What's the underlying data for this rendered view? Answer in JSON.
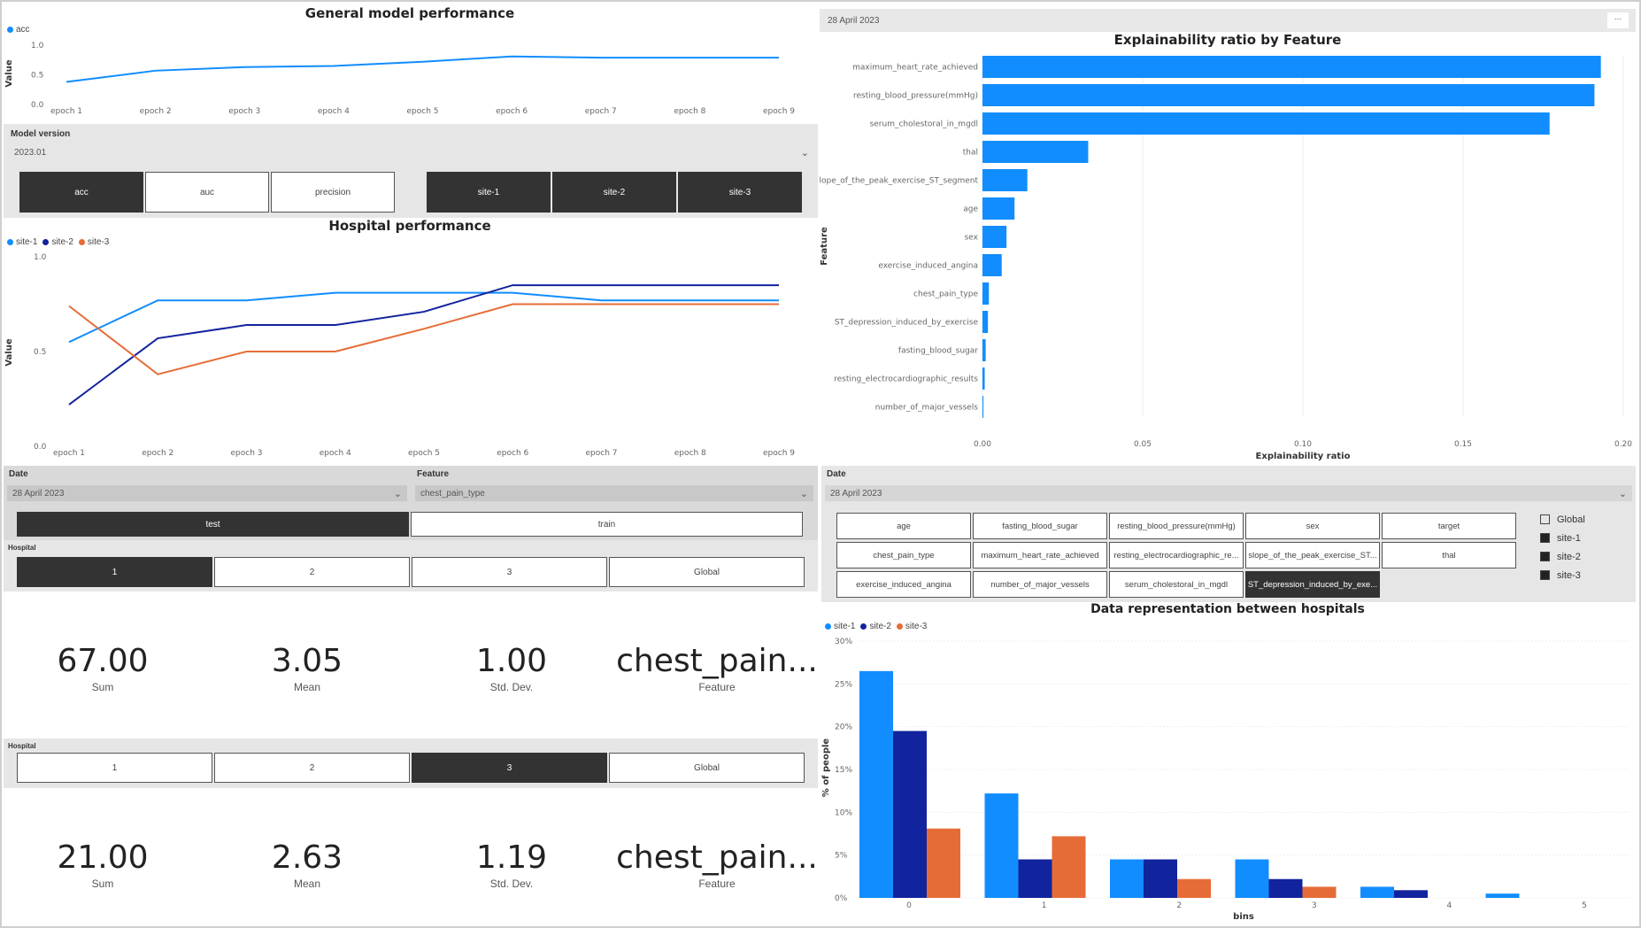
{
  "general_chart": {
    "title": "General model performance",
    "ylabel": "Value",
    "legend": [
      {
        "name": "acc",
        "color": "#118DFF"
      }
    ],
    "chart_data": {
      "type": "line",
      "categories": [
        "epoch 1",
        "epoch 2",
        "epoch 3",
        "epoch 4",
        "epoch 5",
        "epoch 6",
        "epoch 7",
        "epoch 8",
        "epoch 9"
      ],
      "series": [
        {
          "name": "acc",
          "color": "#118DFF",
          "values": [
            0.38,
            0.57,
            0.63,
            0.65,
            0.72,
            0.81,
            0.79,
            0.79,
            0.79
          ]
        }
      ],
      "ylim": [
        0,
        1
      ],
      "yticks": [
        "0.0",
        "0.5",
        "1.0"
      ]
    }
  },
  "model_version": {
    "label": "Model version",
    "value": "2023.01",
    "metric_buttons": [
      {
        "label": "acc",
        "selected": true
      },
      {
        "label": "auc",
        "selected": false
      },
      {
        "label": "precision",
        "selected": false
      }
    ],
    "site_buttons": [
      {
        "label": "site-1",
        "selected": true
      },
      {
        "label": "site-2",
        "selected": true
      },
      {
        "label": "site-3",
        "selected": true
      }
    ]
  },
  "hospital_chart": {
    "title": "Hospital performance",
    "ylabel": "Value",
    "legend": [
      {
        "name": "site-1",
        "color": "#118DFF"
      },
      {
        "name": "site-2",
        "color": "#12239E"
      },
      {
        "name": "site-3",
        "color": "#E66C37"
      }
    ],
    "chart_data": {
      "type": "line",
      "categories": [
        "epoch 1",
        "epoch 2",
        "epoch 3",
        "epoch 4",
        "epoch 5",
        "epoch 6",
        "epoch 7",
        "epoch 8",
        "epoch 9"
      ],
      "series": [
        {
          "name": "site-1",
          "color": "#118DFF",
          "values": [
            0.55,
            0.77,
            0.77,
            0.81,
            0.81,
            0.81,
            0.77,
            0.77,
            0.77
          ]
        },
        {
          "name": "site-2",
          "color": "#12239E",
          "values": [
            0.22,
            0.57,
            0.64,
            0.64,
            0.71,
            0.85,
            0.85,
            0.85,
            0.85
          ]
        },
        {
          "name": "site-3",
          "color": "#E66C37",
          "values": [
            0.74,
            0.38,
            0.5,
            0.5,
            0.62,
            0.75,
            0.75,
            0.75,
            0.75
          ]
        }
      ],
      "ylim": [
        0,
        1
      ],
      "yticks": [
        "0.0",
        "0.5",
        "1.0"
      ]
    }
  },
  "left_filters": {
    "date_label": "Date",
    "date_value": "28 April 2023",
    "feature_label": "Feature",
    "feature_value": "chest_pain_type",
    "split_buttons": [
      {
        "label": "test",
        "selected": true
      },
      {
        "label": "train",
        "selected": false
      }
    ]
  },
  "hospital_block_1": {
    "label": "Hospital",
    "buttons": [
      {
        "label": "1",
        "selected": true
      },
      {
        "label": "2",
        "selected": false
      },
      {
        "label": "3",
        "selected": false
      },
      {
        "label": "Global",
        "selected": false
      }
    ],
    "kpis": [
      {
        "value": "67.00",
        "label": "Sum"
      },
      {
        "value": "3.05",
        "label": "Mean"
      },
      {
        "value": "1.00",
        "label": "Std. Dev."
      },
      {
        "value": "chest_pain...",
        "label": "Feature"
      }
    ]
  },
  "hospital_block_2": {
    "label": "Hospital",
    "buttons": [
      {
        "label": "1",
        "selected": false
      },
      {
        "label": "2",
        "selected": false
      },
      {
        "label": "3",
        "selected": true
      },
      {
        "label": "Global",
        "selected": false
      }
    ],
    "kpis": [
      {
        "value": "21.00",
        "label": "Sum"
      },
      {
        "value": "2.63",
        "label": "Mean"
      },
      {
        "value": "1.19",
        "label": "Std. Dev."
      },
      {
        "value": "chest_pain...",
        "label": "Feature"
      }
    ]
  },
  "top_right_header": {
    "date": "28 April 2023",
    "more": "..."
  },
  "explainability_chart": {
    "title": "Explainability ratio by Feature",
    "xlabel": "Explainability ratio",
    "ylabel": "Feature",
    "chart_data": {
      "type": "bar",
      "orientation": "horizontal",
      "color": "#118DFF",
      "categories": [
        "maximum_heart_rate_achieved",
        "resting_blood_pressure(mmHg)",
        "serum_cholestoral_in_mgdl",
        "thal",
        "slope_of_the_peak_exercise_ST_segment",
        "age",
        "sex",
        "exercise_induced_angina",
        "chest_pain_type",
        "ST_depression_induced_by_exercise",
        "fasting_blood_sugar",
        "resting_electrocardiographic_results",
        "number_of_major_vessels"
      ],
      "values": [
        0.193,
        0.191,
        0.177,
        0.033,
        0.014,
        0.01,
        0.0075,
        0.006,
        0.002,
        0.0017,
        0.001,
        0.0007,
        0.0003
      ],
      "xlim": [
        0,
        0.2
      ],
      "xticks": [
        "0.00",
        "0.05",
        "0.10",
        "0.15",
        "0.20"
      ]
    }
  },
  "right_filters": {
    "date_label": "Date",
    "date_value": "28 April 2023",
    "feature_buttons": [
      {
        "label": "age",
        "selected": false
      },
      {
        "label": "fasting_blood_sugar",
        "selected": false
      },
      {
        "label": "resting_blood_pressure(mmHg)",
        "selected": false
      },
      {
        "label": "sex",
        "selected": false
      },
      {
        "label": "target",
        "selected": false
      },
      {
        "label": "chest_pain_type",
        "selected": false
      },
      {
        "label": "maximum_heart_rate_achieved",
        "selected": false
      },
      {
        "label": "resting_electrocardiographic_re...",
        "selected": false
      },
      {
        "label": "slope_of_the_peak_exercise_ST...",
        "selected": false
      },
      {
        "label": "thal",
        "selected": false
      },
      {
        "label": "exercise_induced_angina",
        "selected": false
      },
      {
        "label": "number_of_major_vessels",
        "selected": false
      },
      {
        "label": "serum_cholestoral_in_mgdl",
        "selected": false
      },
      {
        "label": "ST_depression_induced_by_exe...",
        "selected": true
      }
    ],
    "site_checks": [
      {
        "label": "Global",
        "checked": false
      },
      {
        "label": "site-1",
        "checked": true
      },
      {
        "label": "site-2",
        "checked": true
      },
      {
        "label": "site-3",
        "checked": true
      }
    ]
  },
  "representation_chart": {
    "title": "Data representation between hospitals",
    "xlabel": "bins",
    "ylabel": "% of people",
    "legend": [
      {
        "name": "site-1",
        "color": "#118DFF"
      },
      {
        "name": "site-2",
        "color": "#12239E"
      },
      {
        "name": "site-3",
        "color": "#E66C37"
      }
    ],
    "chart_data": {
      "type": "bar",
      "categories": [
        "0",
        "1",
        "2",
        "3",
        "4",
        "5"
      ],
      "series": [
        {
          "name": "site-1",
          "color": "#118DFF",
          "values": [
            26.5,
            12.2,
            4.5,
            4.5,
            1.3,
            0.5
          ]
        },
        {
          "name": "site-2",
          "color": "#12239E",
          "values": [
            19.5,
            4.5,
            4.5,
            2.2,
            0.9,
            0
          ]
        },
        {
          "name": "site-3",
          "color": "#E66C37",
          "values": [
            8.1,
            7.2,
            2.2,
            1.3,
            0,
            0
          ]
        }
      ],
      "ylim": [
        0,
        30
      ],
      "yticks": [
        "0%",
        "5%",
        "10%",
        "15%",
        "20%",
        "25%",
        "30%"
      ]
    }
  }
}
